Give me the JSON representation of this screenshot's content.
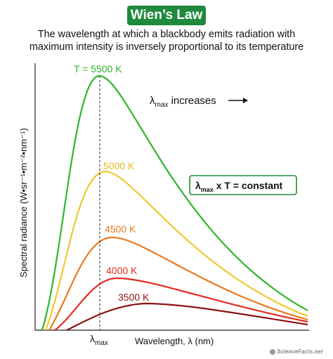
{
  "header": {
    "title": "Wien’s Law",
    "subtitle_line1": "The wavelength at which a blackbody emits radiation with",
    "subtitle_line2": "maximum intensity is inversely proportional to its temperature"
  },
  "axes": {
    "ylabel": "Spectral radiance (W•sr⁻¹•m⁻²•nm⁻¹)",
    "xlabel": "Wavelength, λ (nm)",
    "lambda_symbol": "λ",
    "lambda_subscript": "max"
  },
  "annotations": {
    "increases_symbol": "λ",
    "increases_subscript": "max",
    "increases_text": " increases",
    "arrow_icon": "right-arrow-icon",
    "formula_symbol": "λ",
    "formula_subscript": "max",
    "formula_text": " x T = constant"
  },
  "curves": [
    {
      "label": "T = 5500 K",
      "color": "#2fb52a"
    },
    {
      "label": "5000 K",
      "color": "#f0c830"
    },
    {
      "label": "4500 K",
      "color": "#e8791e"
    },
    {
      "label": "4000 K",
      "color": "#e42a24"
    },
    {
      "label": "3500 K",
      "color": "#8b1414"
    }
  ],
  "credit": {
    "text": "ScienceFacts.net",
    "logo_icon": "sciencefacts-logo-icon"
  }
}
